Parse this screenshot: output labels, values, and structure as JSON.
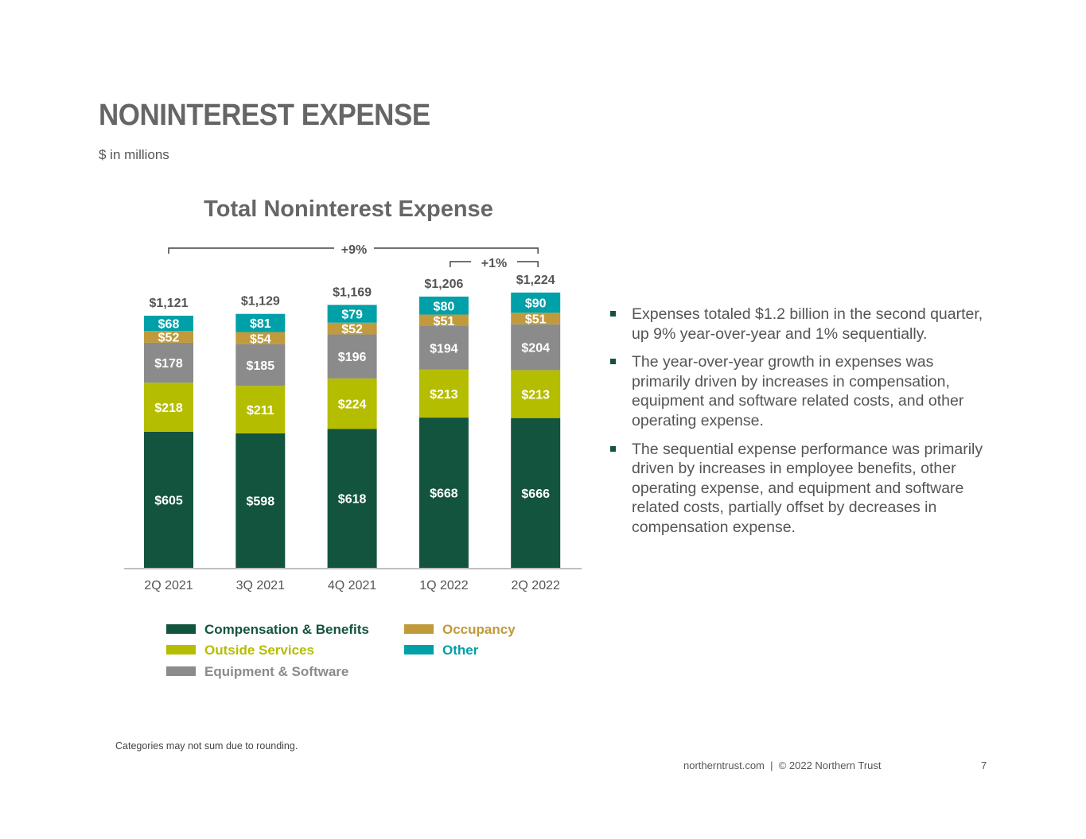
{
  "header": {
    "title": "NONINTEREST EXPENSE",
    "subtitle": "$ in millions"
  },
  "chart_data": {
    "type": "bar",
    "stacked": true,
    "title": "Total Noninterest Expense",
    "categories": [
      "2Q 2021",
      "3Q 2021",
      "4Q 2021",
      "1Q 2022",
      "2Q 2022"
    ],
    "totals": [
      1121,
      1129,
      1169,
      1206,
      1224
    ],
    "total_labels": [
      "$1,121",
      "$1,129",
      "$1,169",
      "$1,206",
      "$1,224"
    ],
    "series": [
      {
        "name": "Compensation & Benefits",
        "color": "#13543f",
        "values": [
          605,
          598,
          618,
          668,
          666
        ]
      },
      {
        "name": "Outside Services",
        "color": "#b5bd00",
        "values": [
          218,
          211,
          224,
          213,
          213
        ]
      },
      {
        "name": "Equipment & Software",
        "color": "#8b8b8b",
        "values": [
          178,
          185,
          196,
          194,
          204
        ]
      },
      {
        "name": "Occupancy",
        "color": "#c09a3b",
        "values": [
          52,
          54,
          52,
          51,
          51
        ]
      },
      {
        "name": "Other",
        "color": "#00a0a8",
        "values": [
          68,
          81,
          79,
          80,
          90
        ]
      }
    ],
    "annotations": [
      {
        "text": "+9%",
        "from": "2Q 2021",
        "to": "2Q 2022"
      },
      {
        "text": "+1%",
        "from": "1Q 2022",
        "to": "2Q 2022"
      }
    ],
    "ylim": [
      0,
      1300
    ],
    "legend": {
      "placement": "bottom",
      "left_column": [
        "Compensation & Benefits",
        "Outside Services",
        "Equipment & Software"
      ],
      "right_column": [
        "Occupancy",
        "Other"
      ]
    }
  },
  "bullets": [
    "Expenses totaled $1.2 billion in the second quarter, up 9% year-over-year and 1% sequentially.",
    "The year-over-year growth in expenses was primarily driven by increases in compensation, equipment and software related costs, and other operating expense.",
    "The sequential expense performance was primarily driven by increases in employee benefits, other operating expense, and equipment and software related costs, partially offset by decreases in compensation expense."
  ],
  "footnote": "Categories may not sum due to rounding.",
  "footer": {
    "text": "northerntrust.com  |  © 2022 Northern Trust",
    "page": "7"
  }
}
